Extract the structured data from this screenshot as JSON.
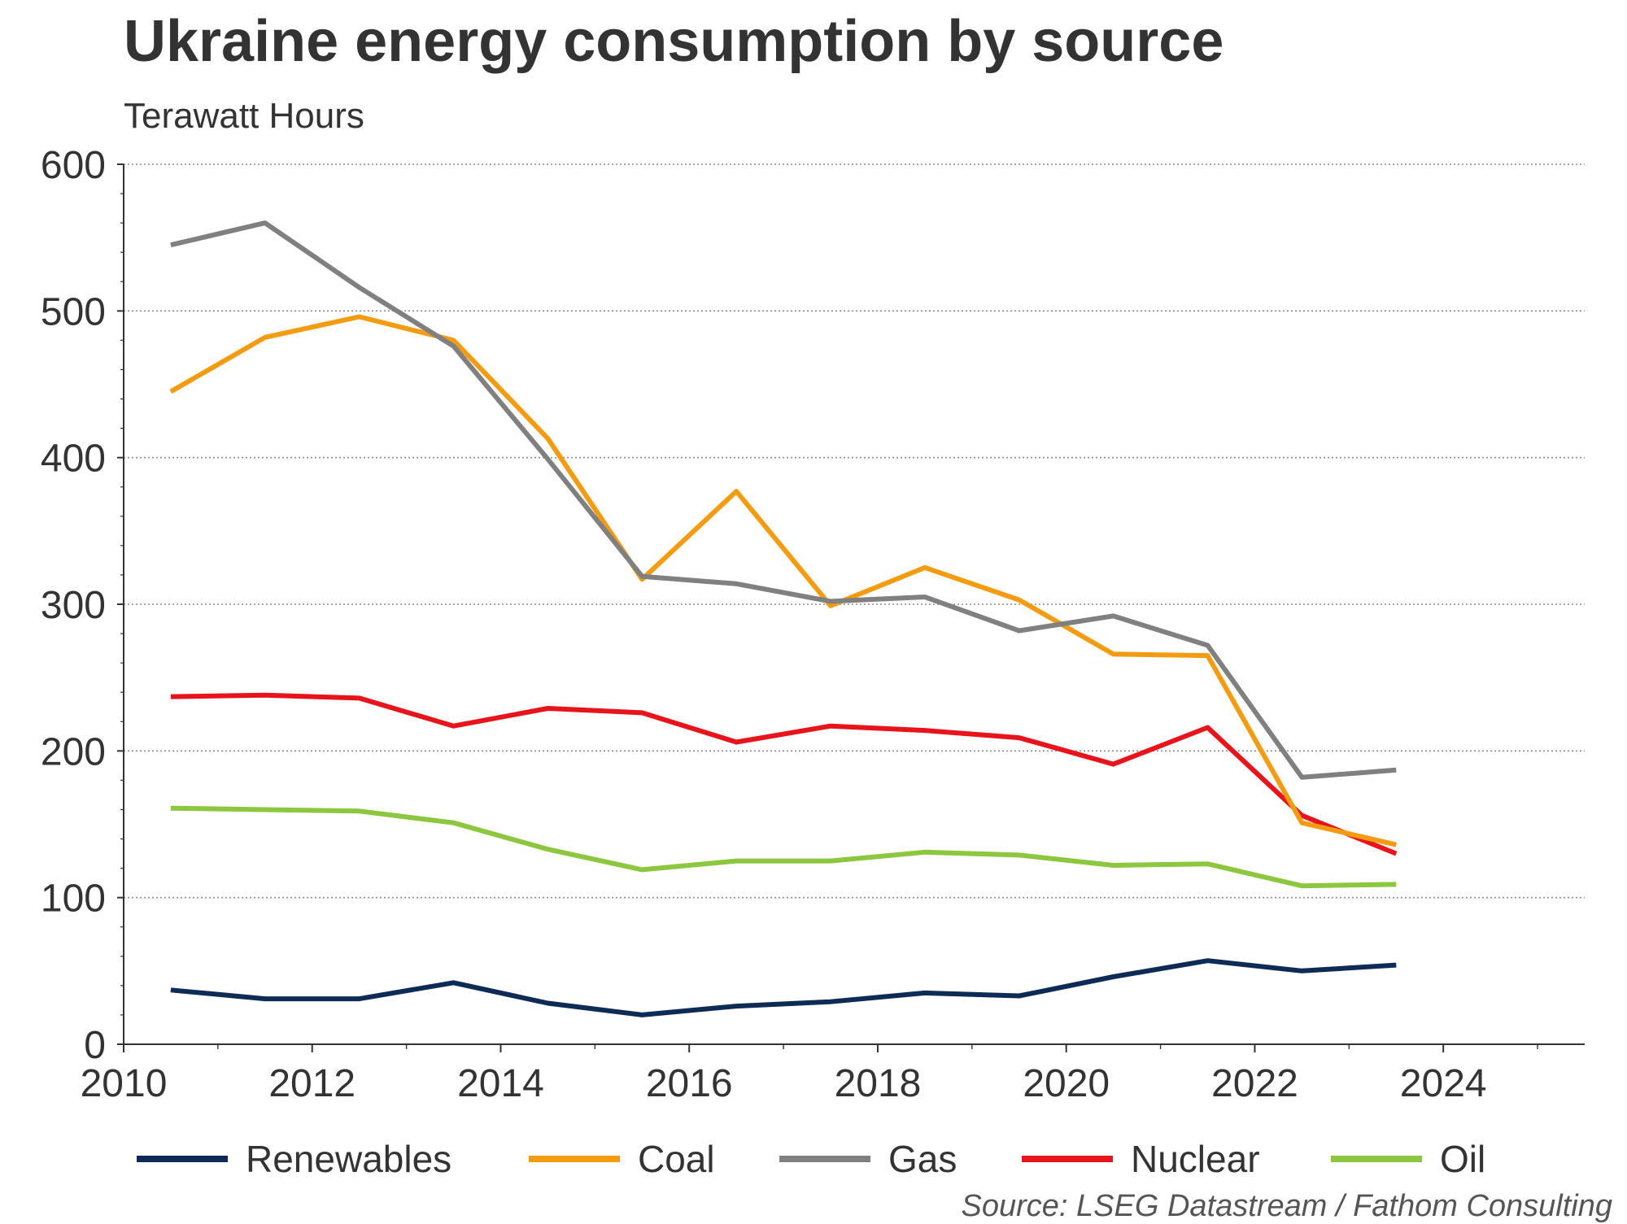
{
  "chart_data": {
    "type": "line",
    "title": "Ukraine energy consumption by source",
    "subtitle": "Terawatt Hours",
    "xlabel": "",
    "ylabel": "Terawatt Hours",
    "xlim": [
      2010,
      2025.5
    ],
    "ylim": [
      0,
      600
    ],
    "x_ticks": [
      2010,
      2012,
      2014,
      2016,
      2018,
      2020,
      2022,
      2024
    ],
    "y_ticks": [
      0,
      100,
      200,
      300,
      400,
      500,
      600
    ],
    "grid": "horizontal dotted",
    "legend_position": "bottom",
    "x": [
      2010.5,
      2011.5,
      2012.5,
      2013.5,
      2014.5,
      2015.5,
      2016.5,
      2017.5,
      2018.5,
      2019.5,
      2020.5,
      2021.5,
      2022.5,
      2023.5
    ],
    "series": [
      {
        "name": "Renewables",
        "color": "#0d2b55",
        "values": [
          37,
          31,
          31,
          42,
          28,
          20,
          26,
          29,
          35,
          33,
          46,
          57,
          50,
          54
        ]
      },
      {
        "name": "Coal",
        "color": "#f39c12",
        "values": [
          445,
          482,
          496,
          480,
          413,
          317,
          377,
          299,
          325,
          303,
          266,
          265,
          151,
          136
        ]
      },
      {
        "name": "Gas",
        "color": "#808080",
        "values": [
          545,
          560,
          516,
          476,
          399,
          319,
          314,
          302,
          305,
          282,
          292,
          272,
          182,
          187
        ]
      },
      {
        "name": "Nuclear",
        "color": "#e8141b",
        "values": [
          237,
          238,
          236,
          217,
          229,
          226,
          206,
          217,
          214,
          209,
          191,
          216,
          156,
          130
        ]
      },
      {
        "name": "Oil",
        "color": "#8dc63f",
        "values": [
          161,
          160,
          159,
          151,
          133,
          119,
          125,
          125,
          131,
          129,
          122,
          123,
          108,
          109
        ]
      }
    ],
    "source": "Source: LSEG Datastream / Fathom Consulting"
  }
}
